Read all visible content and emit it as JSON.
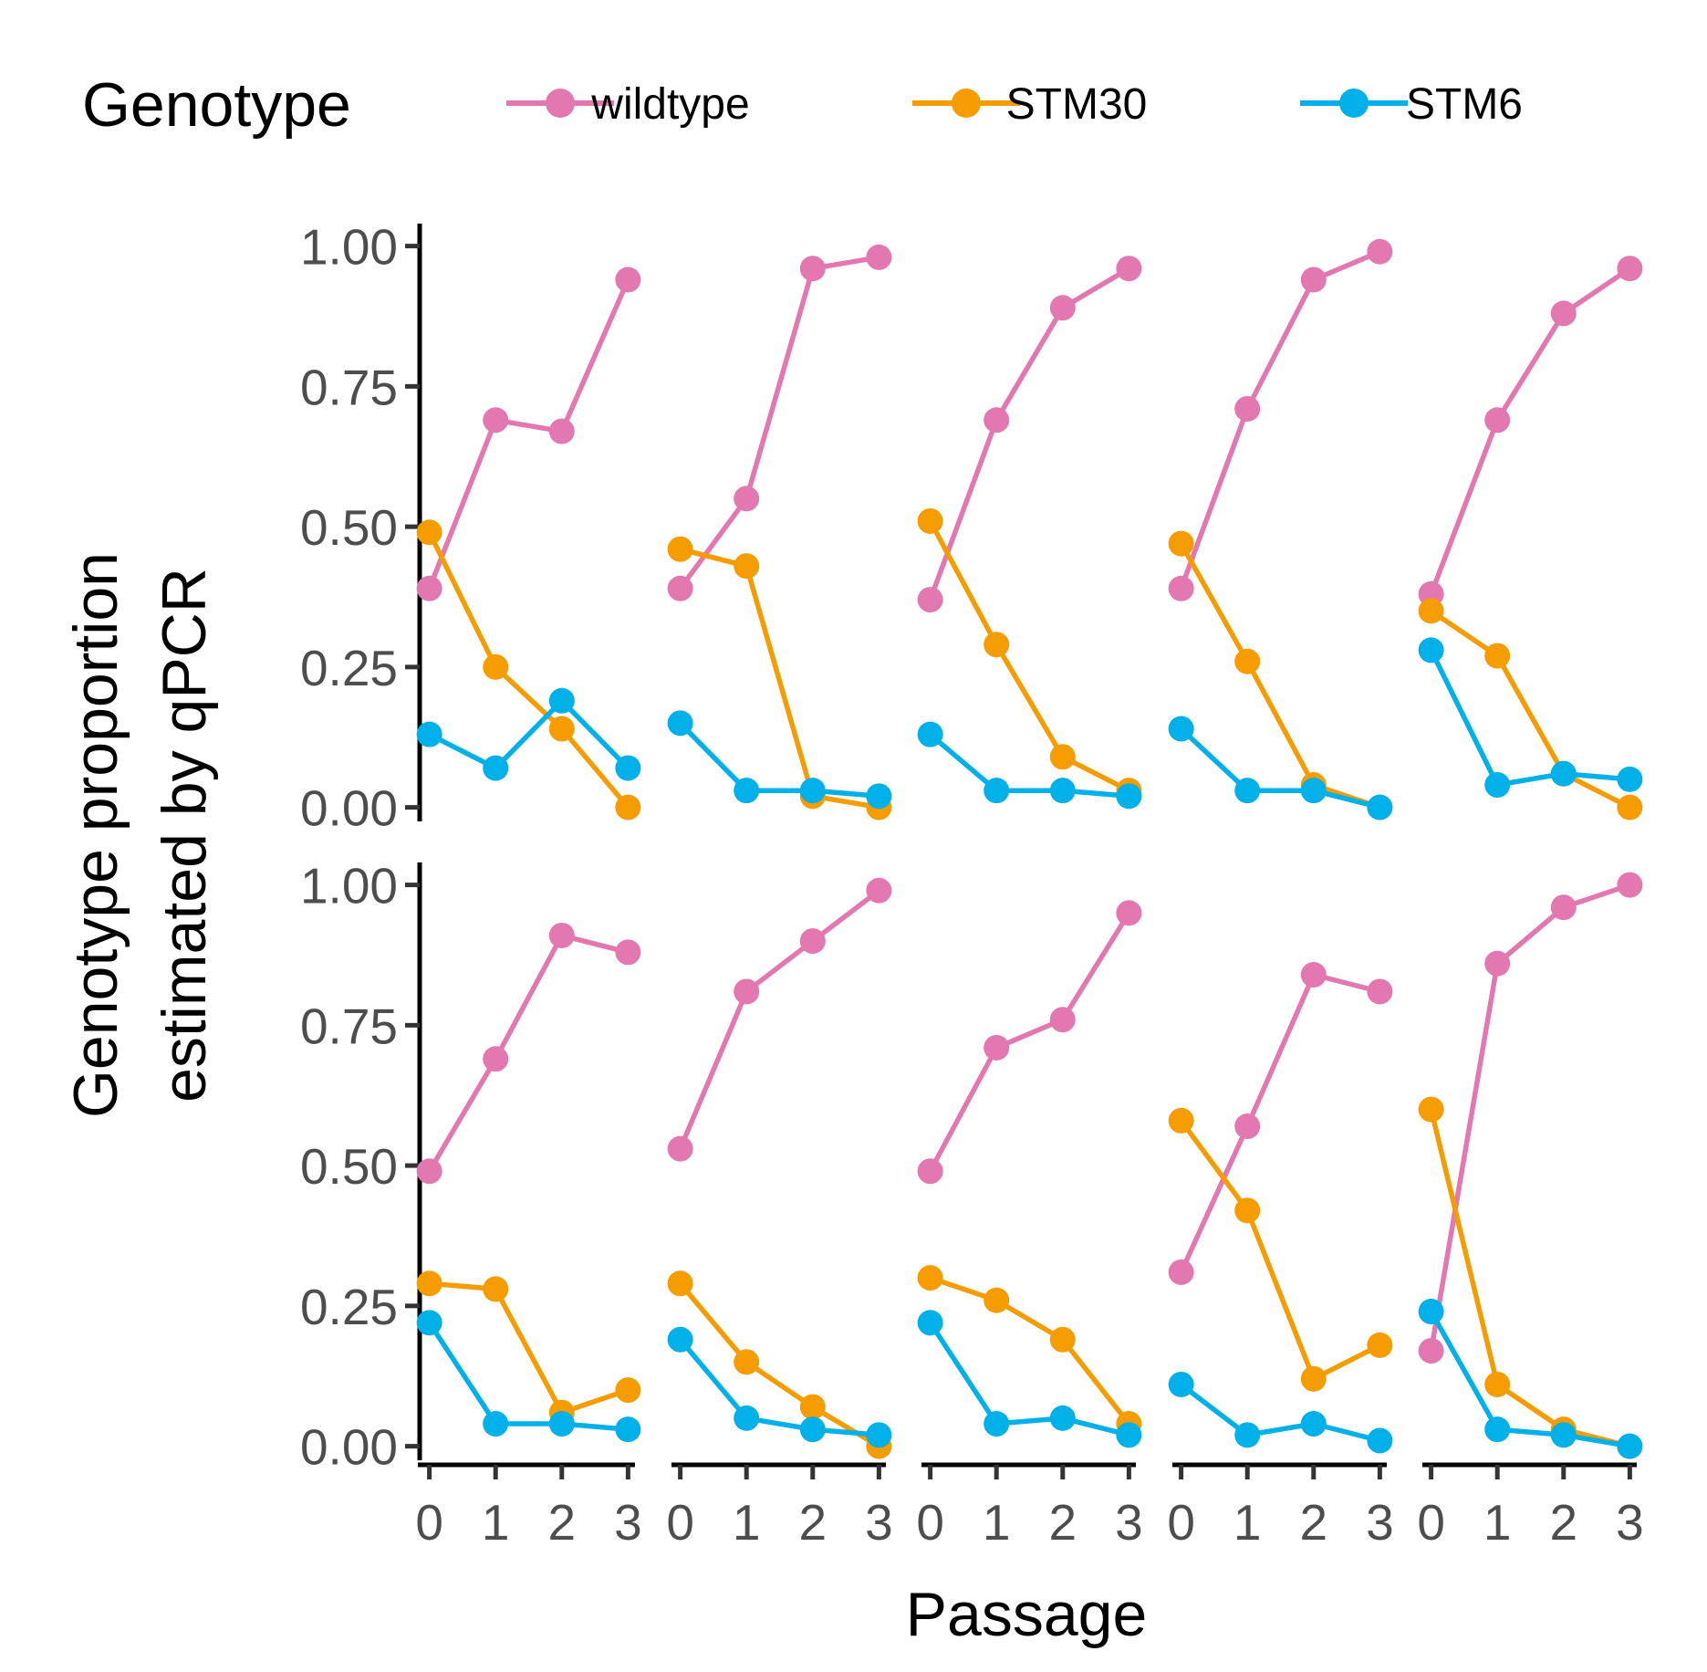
{
  "legend": {
    "title": "Genotype",
    "entries": [
      {
        "name": "wildtype",
        "color": "#E377B0"
      },
      {
        "name": "STM30",
        "color": "#F59C00"
      },
      {
        "name": "STM6",
        "color": "#00B0E8"
      }
    ]
  },
  "chart_data": {
    "type": "line",
    "layout": "faceted small multiples, 2 rows x 5 columns",
    "title": "",
    "xlabel": "Passage",
    "ylabel_lines": [
      "Genotype proportion",
      "estimated by qPCR"
    ],
    "x": [
      0,
      1,
      2,
      3
    ],
    "x_tick_labels": [
      "0",
      "1",
      "2",
      "3"
    ],
    "y_ticks": [
      0,
      0.25,
      0.5,
      0.75,
      1.0
    ],
    "y_tick_labels": [
      "0.00",
      "0.25",
      "0.50",
      "0.75",
      "1.00"
    ],
    "ylim": [
      -0.025,
      1.04
    ],
    "xlim": [
      -0.05,
      3.05
    ],
    "grid": false,
    "series_names": [
      "wildtype",
      "STM30",
      "STM6"
    ],
    "series_colors": [
      "#E377B0",
      "#F59C00",
      "#00B0E8"
    ],
    "panels": [
      {
        "row": 1,
        "col": 1,
        "series": [
          {
            "name": "wildtype",
            "values": [
              0.39,
              0.69,
              0.67,
              0.94
            ]
          },
          {
            "name": "STM30",
            "values": [
              0.49,
              0.25,
              0.14,
              0.0
            ]
          },
          {
            "name": "STM6",
            "values": [
              0.13,
              0.07,
              0.19,
              0.07
            ]
          }
        ]
      },
      {
        "row": 1,
        "col": 2,
        "series": [
          {
            "name": "wildtype",
            "values": [
              0.39,
              0.55,
              0.96,
              0.98
            ]
          },
          {
            "name": "STM30",
            "values": [
              0.46,
              0.43,
              0.02,
              0.0
            ]
          },
          {
            "name": "STM6",
            "values": [
              0.15,
              0.03,
              0.03,
              0.02
            ]
          }
        ]
      },
      {
        "row": 1,
        "col": 3,
        "series": [
          {
            "name": "wildtype",
            "values": [
              0.37,
              0.69,
              0.89,
              0.96
            ]
          },
          {
            "name": "STM30",
            "values": [
              0.51,
              0.29,
              0.09,
              0.03
            ]
          },
          {
            "name": "STM6",
            "values": [
              0.13,
              0.03,
              0.03,
              0.02
            ]
          }
        ]
      },
      {
        "row": 1,
        "col": 4,
        "series": [
          {
            "name": "wildtype",
            "values": [
              0.39,
              0.71,
              0.94,
              0.99
            ]
          },
          {
            "name": "STM30",
            "values": [
              0.47,
              0.26,
              0.04,
              0.0
            ]
          },
          {
            "name": "STM6",
            "values": [
              0.14,
              0.03,
              0.03,
              0.0
            ]
          }
        ]
      },
      {
        "row": 1,
        "col": 5,
        "series": [
          {
            "name": "wildtype",
            "values": [
              0.38,
              0.69,
              0.88,
              0.96
            ]
          },
          {
            "name": "STM30",
            "values": [
              0.35,
              0.27,
              0.06,
              0.0
            ]
          },
          {
            "name": "STM6",
            "values": [
              0.28,
              0.04,
              0.06,
              0.05
            ]
          }
        ]
      },
      {
        "row": 2,
        "col": 1,
        "series": [
          {
            "name": "wildtype",
            "values": [
              0.49,
              0.69,
              0.91,
              0.88
            ]
          },
          {
            "name": "STM30",
            "values": [
              0.29,
              0.28,
              0.06,
              0.1
            ]
          },
          {
            "name": "STM6",
            "values": [
              0.22,
              0.04,
              0.04,
              0.03
            ]
          }
        ]
      },
      {
        "row": 2,
        "col": 2,
        "series": [
          {
            "name": "wildtype",
            "values": [
              0.53,
              0.81,
              0.9,
              0.99
            ]
          },
          {
            "name": "STM30",
            "values": [
              0.29,
              0.15,
              0.07,
              0.0
            ]
          },
          {
            "name": "STM6",
            "values": [
              0.19,
              0.05,
              0.03,
              0.02
            ]
          }
        ]
      },
      {
        "row": 2,
        "col": 3,
        "series": [
          {
            "name": "wildtype",
            "values": [
              0.49,
              0.71,
              0.76,
              0.95
            ]
          },
          {
            "name": "STM30",
            "values": [
              0.3,
              0.26,
              0.19,
              0.04
            ]
          },
          {
            "name": "STM6",
            "values": [
              0.22,
              0.04,
              0.05,
              0.02
            ]
          }
        ]
      },
      {
        "row": 2,
        "col": 4,
        "series": [
          {
            "name": "wildtype",
            "values": [
              0.31,
              0.57,
              0.84,
              0.81
            ]
          },
          {
            "name": "STM30",
            "values": [
              0.58,
              0.42,
              0.12,
              0.18
            ]
          },
          {
            "name": "STM6",
            "values": [
              0.11,
              0.02,
              0.04,
              0.01
            ]
          }
        ]
      },
      {
        "row": 2,
        "col": 5,
        "series": [
          {
            "name": "wildtype",
            "values": [
              0.17,
              0.86,
              0.96,
              1.0
            ]
          },
          {
            "name": "STM30",
            "values": [
              0.6,
              0.11,
              0.03,
              0.0
            ]
          },
          {
            "name": "STM6",
            "values": [
              0.24,
              0.03,
              0.02,
              0.0
            ]
          }
        ]
      }
    ]
  }
}
